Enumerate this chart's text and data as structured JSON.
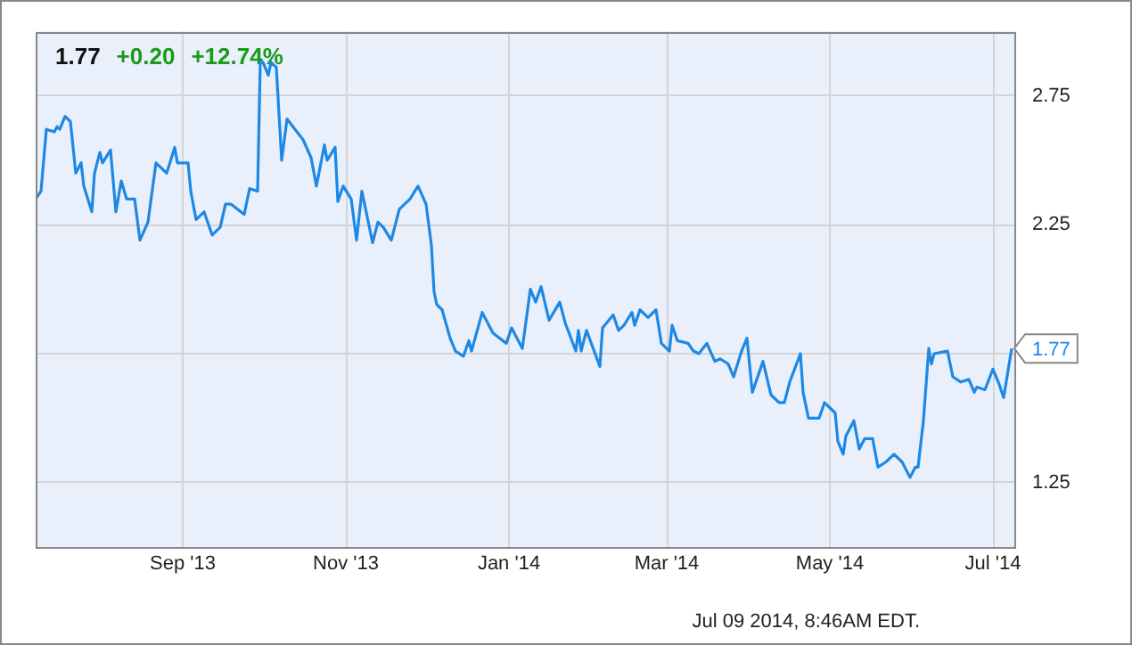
{
  "chart_data": {
    "type": "line",
    "title": "1.77",
    "annotations": [
      "+0.20",
      "+12.74%",
      "Jul 09 2014, 8:46AM EDT.",
      "1.77"
    ],
    "x": [
      "2013-07-08",
      "2013-07-10",
      "2013-07-12",
      "2013-07-15",
      "2013-07-16",
      "2013-07-17",
      "2013-07-19",
      "2013-07-21",
      "2013-07-23",
      "2013-07-25",
      "2013-07-26",
      "2013-07-29",
      "2013-07-30",
      "2013-08-01",
      "2013-08-02",
      "2013-08-05",
      "2013-08-07",
      "2013-08-09",
      "2013-08-11",
      "2013-08-14",
      "2013-08-16",
      "2013-08-19",
      "2013-08-22",
      "2013-08-26",
      "2013-08-29",
      "2013-08-30",
      "2013-09-03",
      "2013-09-04",
      "2013-09-06",
      "2013-09-09",
      "2013-09-12",
      "2013-09-15",
      "2013-09-17",
      "2013-09-19",
      "2013-09-24",
      "2013-09-26",
      "2013-09-29",
      "2013-09-30",
      "2013-10-01",
      "2013-10-03",
      "2013-10-04",
      "2013-10-06",
      "2013-10-08",
      "2013-10-10",
      "2013-10-13",
      "2013-10-16",
      "2013-10-19",
      "2013-10-21",
      "2013-10-24",
      "2013-10-25",
      "2013-10-28",
      "2013-10-29",
      "2013-10-31",
      "2013-11-03",
      "2013-11-05",
      "2013-11-07",
      "2013-11-11",
      "2013-11-13",
      "2013-11-15",
      "2013-11-18",
      "2013-11-21",
      "2013-11-25",
      "2013-11-28",
      "2013-12-01",
      "2013-12-03",
      "2013-12-04",
      "2013-12-05",
      "2013-12-07",
      "2013-12-10",
      "2013-12-12",
      "2013-12-15",
      "2013-12-17",
      "2013-12-18",
      "2013-12-22",
      "2013-12-26",
      "2013-12-31",
      "2014-01-02",
      "2014-01-06",
      "2014-01-09",
      "2014-01-11",
      "2014-01-13",
      "2014-01-16",
      "2014-01-20",
      "2014-01-22",
      "2014-01-26",
      "2014-01-27",
      "2014-01-28",
      "2014-01-30",
      "2014-02-04",
      "2014-02-05",
      "2014-02-09",
      "2014-02-11",
      "2014-02-13",
      "2014-02-16",
      "2014-02-17",
      "2014-02-19",
      "2014-02-22",
      "2014-02-25",
      "2014-02-27",
      "2014-03-02",
      "2014-03-03",
      "2014-03-05",
      "2014-03-09",
      "2014-03-11",
      "2014-03-13",
      "2014-03-16",
      "2014-03-19",
      "2014-03-21",
      "2014-03-24",
      "2014-03-26",
      "2014-03-29",
      "2014-03-31",
      "2014-04-02",
      "2014-04-06",
      "2014-04-09",
      "2014-04-12",
      "2014-04-14",
      "2014-04-16",
      "2014-04-20",
      "2014-04-21",
      "2014-04-23",
      "2014-04-27",
      "2014-04-29",
      "2014-05-03",
      "2014-05-04",
      "2014-05-06",
      "2014-05-07",
      "2014-05-10",
      "2014-05-12",
      "2014-05-14",
      "2014-05-17",
      "2014-05-19",
      "2014-05-22",
      "2014-05-25",
      "2014-05-28",
      "2014-05-31",
      "2014-06-02",
      "2014-06-03",
      "2014-06-05",
      "2014-06-07",
      "2014-06-08",
      "2014-06-09",
      "2014-06-14",
      "2014-06-16",
      "2014-06-19",
      "2014-06-22",
      "2014-06-24",
      "2014-06-25",
      "2014-06-28",
      "2014-07-01",
      "2014-07-03",
      "2014-07-05",
      "2014-07-08"
    ],
    "series": [
      {
        "color": "#1e88e5",
        "values": [
          2.35,
          2.38,
          2.62,
          2.61,
          2.63,
          2.62,
          2.67,
          2.65,
          2.45,
          2.49,
          2.4,
          2.3,
          2.45,
          2.53,
          2.49,
          2.54,
          2.3,
          2.42,
          2.35,
          2.35,
          2.19,
          2.26,
          2.49,
          2.45,
          2.55,
          2.49,
          2.49,
          2.38,
          2.27,
          2.3,
          2.21,
          2.24,
          2.33,
          2.33,
          2.29,
          2.39,
          2.38,
          2.88,
          2.88,
          2.83,
          2.88,
          2.86,
          2.5,
          2.66,
          2.62,
          2.58,
          2.51,
          2.4,
          2.56,
          2.5,
          2.55,
          2.34,
          2.4,
          2.35,
          2.19,
          2.38,
          2.18,
          2.26,
          2.24,
          2.19,
          2.31,
          2.35,
          2.4,
          2.33,
          2.17,
          1.99,
          1.94,
          1.92,
          1.81,
          1.76,
          1.74,
          1.8,
          1.76,
          1.91,
          1.83,
          1.79,
          1.85,
          1.77,
          2.0,
          1.95,
          2.01,
          1.88,
          1.95,
          1.87,
          1.76,
          1.84,
          1.76,
          1.84,
          1.7,
          1.85,
          1.9,
          1.84,
          1.86,
          1.91,
          1.86,
          1.92,
          1.89,
          1.92,
          1.79,
          1.76,
          1.86,
          1.8,
          1.79,
          1.76,
          1.75,
          1.79,
          1.72,
          1.73,
          1.71,
          1.66,
          1.76,
          1.81,
          1.6,
          1.72,
          1.59,
          1.56,
          1.56,
          1.64,
          1.75,
          1.6,
          1.5,
          1.5,
          1.56,
          1.52,
          1.41,
          1.36,
          1.43,
          1.49,
          1.38,
          1.42,
          1.42,
          1.31,
          1.33,
          1.36,
          1.33,
          1.27,
          1.31,
          1.31,
          1.49,
          1.77,
          1.71,
          1.75,
          1.76,
          1.66,
          1.64,
          1.65,
          1.6,
          1.62,
          1.61,
          1.69,
          1.64,
          1.58,
          1.77
        ]
      }
    ],
    "xlim": [
      "2013-07-08",
      "2014-07-09"
    ],
    "xticks": [
      {
        "value": "2013-09-01",
        "label": "Sep '13"
      },
      {
        "value": "2013-11-01",
        "label": "Nov '13"
      },
      {
        "value": "2014-01-01",
        "label": "Jan '14"
      },
      {
        "value": "2014-03-01",
        "label": "Mar '14"
      },
      {
        "value": "2014-05-01",
        "label": "May '14"
      },
      {
        "value": "2014-07-01",
        "label": "Jul '14"
      }
    ],
    "ylim": [
      1.0,
      3.0
    ],
    "yticks": [
      1.25,
      {
        "value": 1.75,
        "label": null
      },
      2.25,
      2.75
    ],
    "grid": true,
    "marker": "none",
    "line_style": "solid"
  }
}
